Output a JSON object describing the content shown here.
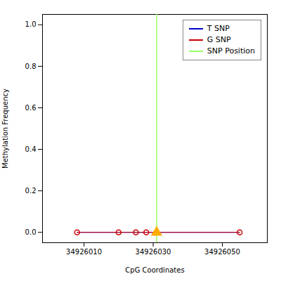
{
  "chart_data": {
    "type": "line",
    "xlabel": "CpG Coordinates",
    "ylabel": "Methylation Frequency",
    "xlim": [
      34925998,
      34926063
    ],
    "ylim": [
      -0.05,
      1.05
    ],
    "xticks": [
      34926010,
      34926030,
      34926050
    ],
    "yticks": [
      {
        "value": 0.0,
        "label": "0.0"
      },
      0.2,
      0.4,
      0.6,
      0.8,
      {
        "value": 1.0,
        "label": "1.0"
      }
    ],
    "grid": false,
    "legend": "upper right",
    "series": [
      {
        "name": "T SNP",
        "type": "line",
        "color": "#0000cc",
        "x": [
          34926008,
          34926055
        ],
        "values": [
          0.0,
          0.0
        ]
      },
      {
        "name": "G SNP",
        "type": "line",
        "color": "#cc0000",
        "marker": "circle",
        "x": [
          34926008,
          34926020,
          34926025,
          34926028,
          34926031,
          34926055
        ],
        "values": [
          0.0,
          0.0,
          0.0,
          0.0,
          0.0,
          0.0
        ]
      },
      {
        "name": "SNP Position",
        "type": "vline",
        "color": "#99ff66",
        "x": [
          34926031
        ]
      },
      {
        "type": "scatter",
        "color": "#ffaa00",
        "marker": "triangle",
        "x": [
          34926031
        ],
        "values": [
          0.0
        ]
      }
    ]
  }
}
